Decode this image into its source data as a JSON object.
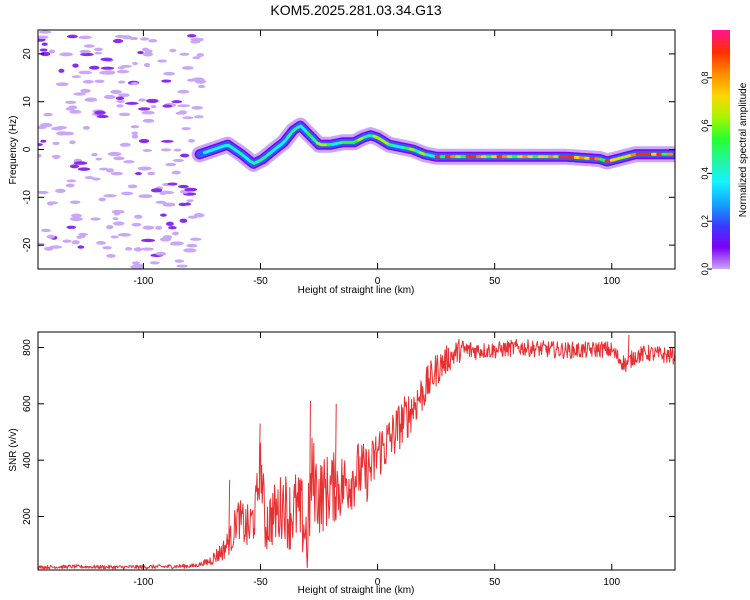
{
  "title": "KOM5.2025.281.03.34.G13",
  "colorbar": {
    "label": "Normalized spectral amplitude",
    "ticks": [
      "0.0",
      "0.2",
      "0.4",
      "0.6",
      "0.8"
    ],
    "tick_values": [
      0.0,
      0.2,
      0.4,
      0.6,
      0.8
    ],
    "range": [
      0,
      1
    ],
    "colors": [
      "#c9a6f7",
      "#7e00f5",
      "#3a3cff",
      "#12a5ff",
      "#14f2ff",
      "#24f59f",
      "#27ff2c",
      "#aaf500",
      "#ffd400",
      "#ff8a00",
      "#ff2d00",
      "#ff1493"
    ]
  },
  "chart_data": [
    {
      "type": "heatmap",
      "title": "KOM5.2025.281.03.34.G13",
      "xlabel": "Height of straight line (km)",
      "ylabel": "Frequency (Hz)",
      "xlim": [
        -145,
        127
      ],
      "ylim": [
        -25,
        25
      ],
      "xticks": [
        -100,
        -50,
        0,
        50,
        100
      ],
      "xtick_labels": [
        "-100",
        "-50",
        "0",
        "50",
        "100"
      ],
      "yticks": [
        -20,
        -10,
        0,
        10,
        20
      ],
      "ytick_labels": [
        "-20",
        "-10",
        "0",
        "10",
        "20"
      ],
      "ridge": {
        "x": [
          -76,
          -70,
          -64,
          -58,
          -53,
          -49,
          -44,
          -40,
          -36,
          -33,
          -30,
          -25,
          -20,
          -15,
          -10,
          -6,
          -3,
          0,
          5,
          10,
          15,
          20,
          25,
          40,
          60,
          80,
          95,
          98,
          102,
          106,
          110,
          115,
          120,
          127
        ],
        "y": [
          -1,
          0,
          1,
          -1,
          -3,
          -2,
          0,
          1.5,
          4,
          5,
          3.5,
          1,
          1,
          1.5,
          1.5,
          2.5,
          3,
          2.5,
          1,
          0.5,
          0,
          -1,
          -1.5,
          -1.5,
          -1.5,
          -1.5,
          -2,
          -2.5,
          -2,
          -1.5,
          -1,
          -1,
          -1,
          -1
        ]
      },
      "noise_region_x": [
        -145,
        -75
      ]
    },
    {
      "type": "line",
      "xlabel": "Height of straight line (km)",
      "ylabel": "SNR (v/v)",
      "xlim": [
        -145,
        127
      ],
      "ylim": [
        10,
        855
      ],
      "xticks": [
        -100,
        -50,
        0,
        50,
        100
      ],
      "xtick_labels": [
        "-100",
        "-50",
        "0",
        "50",
        "100"
      ],
      "yticks": [
        200,
        400,
        600,
        800
      ],
      "ytick_labels": [
        "200",
        "400",
        "600",
        "800"
      ],
      "series": [
        {
          "name": "SNR",
          "color": "#e83030",
          "x": [
            -145,
            -130,
            -110,
            -90,
            -78,
            -72,
            -66,
            -62,
            -60,
            -58,
            -55,
            -52,
            -50,
            -48,
            -45,
            -42,
            -40,
            -38,
            -35,
            -32,
            -30,
            -28,
            -25,
            -20,
            -15,
            -12,
            -8,
            -5,
            -2,
            0,
            3,
            6,
            10,
            13,
            16,
            20,
            25,
            30,
            35,
            40,
            50,
            60,
            70,
            80,
            90,
            95,
            100,
            103,
            106,
            110,
            115,
            120,
            127
          ],
          "y": [
            20,
            22,
            20,
            22,
            25,
            40,
            80,
            130,
            200,
            180,
            150,
            220,
            400,
            170,
            200,
            220,
            260,
            200,
            230,
            190,
            120,
            350,
            270,
            300,
            310,
            330,
            360,
            350,
            380,
            430,
            450,
            480,
            530,
            560,
            600,
            650,
            720,
            760,
            790,
            790,
            790,
            800,
            795,
            790,
            790,
            795,
            790,
            760,
            740,
            770,
            780,
            775,
            770
          ]
        }
      ],
      "noise_amplitude": [
        [
          -145,
          6
        ],
        [
          -75,
          8
        ],
        [
          -65,
          40
        ],
        [
          -55,
          90
        ],
        [
          -45,
          110
        ],
        [
          -30,
          150
        ],
        [
          -15,
          120
        ],
        [
          0,
          100
        ],
        [
          15,
          80
        ],
        [
          30,
          50
        ],
        [
          45,
          30
        ],
        [
          127,
          30
        ]
      ],
      "spikes": [
        {
          "x": -63.5,
          "y": 330
        },
        {
          "x": -50.5,
          "y": 530
        },
        {
          "x": -29,
          "y": 610
        },
        {
          "x": -18,
          "y": 600
        },
        {
          "x": 107,
          "y": 845
        }
      ]
    }
  ]
}
